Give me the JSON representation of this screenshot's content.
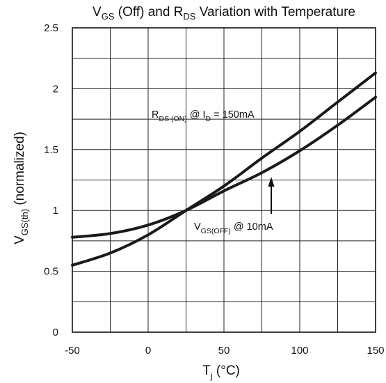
{
  "chart_data": {
    "type": "line",
    "title": {
      "main": "V",
      "sub1": "GS",
      "mid": " (Off) and R",
      "sub2": "DS",
      "tail": " Variation with Temperature"
    },
    "xlabel": {
      "main": "T",
      "sub": "j",
      "tail": " (°C)"
    },
    "ylabel": {
      "main": "V",
      "sub": "GS(th)",
      "tail": " (normalized)"
    },
    "xlim": [
      -50,
      150
    ],
    "ylim": [
      0,
      2.5
    ],
    "x_ticks": [
      "-50",
      "0",
      "50",
      "100",
      "150"
    ],
    "y_ticks": [
      "0",
      "0.5",
      "1",
      "1.5",
      "2",
      "2.5"
    ],
    "grid": true,
    "series": [
      {
        "name": "RDS(ON) @ ID = 150mA",
        "x": [
          -50,
          -25,
          0,
          25,
          50,
          75,
          100,
          125,
          150
        ],
        "values": [
          0.55,
          0.65,
          0.8,
          1.0,
          1.2,
          1.43,
          1.65,
          1.89,
          2.13
        ]
      },
      {
        "name": "VGS(OFF) @ 10mA",
        "x": [
          -50,
          -25,
          0,
          25,
          50,
          75,
          100,
          125,
          150
        ],
        "values": [
          0.78,
          0.81,
          0.88,
          1.0,
          1.16,
          1.31,
          1.49,
          1.7,
          1.93
        ]
      }
    ],
    "annotations": [
      {
        "main": "R",
        "sub1": "DS (ON)",
        "mid": " @ I",
        "sub2": "D",
        "tail": " = 150mA",
        "for_series": 0
      },
      {
        "main": "V",
        "sub1": "GS(OFF)",
        "mid": " @ 10mA",
        "sub2": "",
        "tail": "",
        "for_series": 1
      }
    ]
  }
}
